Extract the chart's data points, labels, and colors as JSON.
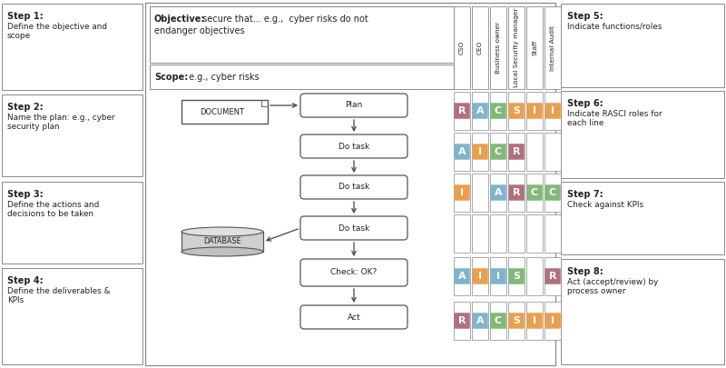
{
  "background": "#ffffff",
  "left_steps": [
    {
      "title": "Step 1:",
      "body": "Define the objective and\nscope"
    },
    {
      "title": "Step 2:",
      "body": "Name the plan: e.g., cyber\nsecurity plan"
    },
    {
      "title": "Step 3:",
      "body": "Define the actions and\ndecisions to be taken"
    },
    {
      "title": "Step 4:",
      "body": "Define the deliverables &\nKPIs"
    }
  ],
  "right_steps": [
    {
      "title": "Step 5:",
      "body": "Indicate functions/roles"
    },
    {
      "title": "Step 6:",
      "body": "Indicate RASCI roles for\neach line"
    },
    {
      "title": "Step 7:",
      "body": "Check against KPIs"
    },
    {
      "title": "Step 8:",
      "body": "Act (accept/review) by\nprocess owner"
    }
  ],
  "flow_nodes": [
    "Plan",
    "Do task",
    "Do task",
    "Do task",
    "Check: OK?",
    "Act"
  ],
  "document_label": "DOCUMENT",
  "database_label": "DATABASE",
  "col_headers": [
    "CSO",
    "CEO",
    "Business owner",
    "Local Security manager",
    "Staff",
    "Internal Audit"
  ],
  "rasci_rows": [
    [
      {
        "col": 0,
        "letter": "R",
        "color": "#b07080"
      },
      {
        "col": 1,
        "letter": "A",
        "color": "#80b4cc"
      },
      {
        "col": 2,
        "letter": "C",
        "color": "#82b878"
      },
      {
        "col": 3,
        "letter": "S",
        "color": "#e8a050"
      },
      {
        "col": 4,
        "letter": "I",
        "color": "#e8a050"
      },
      {
        "col": 5,
        "letter": "I",
        "color": "#e8a050"
      }
    ],
    [
      {
        "col": 0,
        "letter": "A",
        "color": "#80b4cc"
      },
      {
        "col": 1,
        "letter": "I",
        "color": "#e8a050"
      },
      {
        "col": 2,
        "letter": "C",
        "color": "#82b878"
      },
      {
        "col": 3,
        "letter": "R",
        "color": "#b07080"
      }
    ],
    [
      {
        "col": 0,
        "letter": "I",
        "color": "#e8a050"
      },
      {
        "col": 2,
        "letter": "A",
        "color": "#80b4cc"
      },
      {
        "col": 3,
        "letter": "R",
        "color": "#b07080"
      },
      {
        "col": 4,
        "letter": "C",
        "color": "#82b878"
      },
      {
        "col": 5,
        "letter": "C",
        "color": "#82b878"
      }
    ],
    [],
    [
      {
        "col": 0,
        "letter": "A",
        "color": "#80b4cc"
      },
      {
        "col": 1,
        "letter": "I",
        "color": "#e8a050"
      },
      {
        "col": 2,
        "letter": "I",
        "color": "#80b4cc"
      },
      {
        "col": 3,
        "letter": "S",
        "color": "#82b878"
      },
      {
        "col": 5,
        "letter": "R",
        "color": "#b07080"
      }
    ],
    [
      {
        "col": 0,
        "letter": "R",
        "color": "#b07080"
      },
      {
        "col": 1,
        "letter": "A",
        "color": "#80b4cc"
      },
      {
        "col": 2,
        "letter": "C",
        "color": "#82b878"
      },
      {
        "col": 3,
        "letter": "S",
        "color": "#e8a050"
      },
      {
        "col": 4,
        "letter": "I",
        "color": "#e8a050"
      },
      {
        "col": 5,
        "letter": "I",
        "color": "#e8a050"
      }
    ]
  ]
}
